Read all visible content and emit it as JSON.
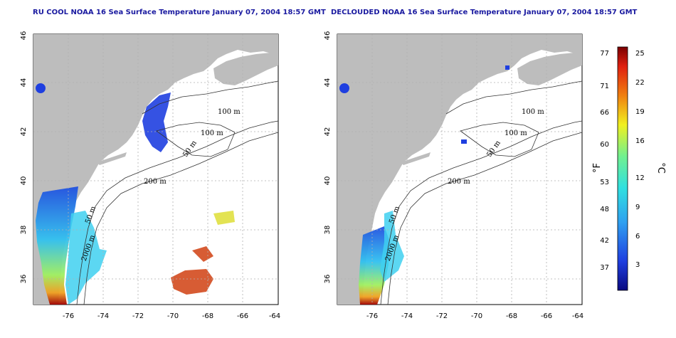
{
  "maps": [
    {
      "title": "RU COOL NOAA 16 Sea Surface Temperature January 07, 2004 18:57 GMT",
      "x_ticks": [
        "-76",
        "-74",
        "-72",
        "-70",
        "-68",
        "-66",
        "-64"
      ],
      "y_ticks": [
        "36",
        "38",
        "40",
        "42",
        "44",
        "46"
      ],
      "contour_labels": [
        "100 m",
        "100 m",
        "50 m",
        "200 m",
        "50 m",
        "2000 m"
      ]
    },
    {
      "title": "DECLOUDED NOAA 16 Sea Surface Temperature January 07, 2004 18:57 GMT",
      "x_ticks": [
        "-76",
        "-74",
        "-72",
        "-70",
        "-68",
        "-66",
        "-64"
      ],
      "y_ticks": [
        "36",
        "38",
        "40",
        "42",
        "44",
        "46"
      ],
      "contour_labels": [
        "100 m",
        "100 m",
        "50 m",
        "200 m",
        "50 m",
        "2000 m"
      ]
    }
  ],
  "colorbar": {
    "fahrenheit_ticks": [
      "77",
      "71",
      "66",
      "60",
      "53",
      "48",
      "42",
      "37"
    ],
    "celsius_ticks": [
      "25",
      "22",
      "19",
      "16",
      "12",
      "9",
      "6",
      "3"
    ],
    "fahrenheit_unit": "°F",
    "celsius_unit": "°C"
  },
  "colors": {
    "land": "#bdbdbd",
    "ocean": "#ffffff",
    "title": "#1a1aa0",
    "grid": "#b0b0b0"
  }
}
